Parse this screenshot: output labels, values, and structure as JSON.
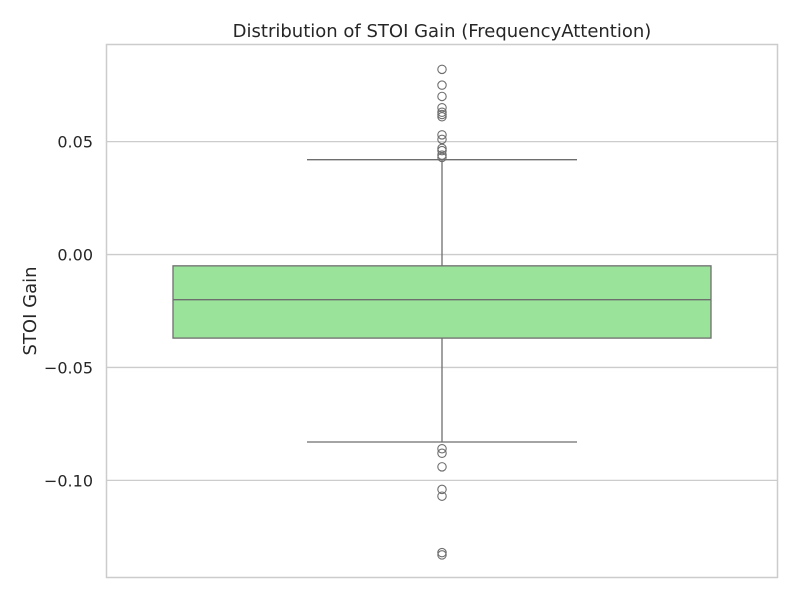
{
  "chart_data": {
    "type": "box",
    "title": "Distribution of STOI Gain (FrequencyAttention)",
    "xlabel": "",
    "ylabel": "STOI Gain",
    "ylim": [
      -0.143,
      0.093
    ],
    "yticks": [
      0.05,
      0.0,
      -0.05,
      -0.1
    ],
    "ytick_labels": [
      "0.05",
      "0.00",
      "−0.05",
      "−0.10"
    ],
    "grid": "horizontal",
    "box_color": "#9ae39a",
    "line_color": "#6e6e6e",
    "box": {
      "q1": -0.037,
      "median": -0.02,
      "q3": -0.005,
      "whisker_low": -0.083,
      "whisker_high": 0.042
    },
    "outliers": [
      0.082,
      0.075,
      0.07,
      0.065,
      0.063,
      0.062,
      0.061,
      0.053,
      0.051,
      0.047,
      0.046,
      0.044,
      0.043,
      -0.086,
      -0.088,
      -0.094,
      -0.104,
      -0.107,
      -0.132,
      -0.133
    ]
  }
}
